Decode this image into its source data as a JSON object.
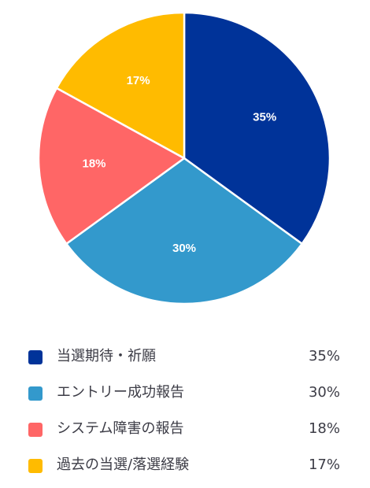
{
  "chart_data": {
    "type": "pie",
    "title": "",
    "legend_position": "bottom",
    "slices": [
      {
        "label": "当選期待・祈願",
        "value": 35,
        "display": "35%",
        "color": "#003399"
      },
      {
        "label": "エントリー成功報告",
        "value": 30,
        "display": "30%",
        "color": "#3399cc"
      },
      {
        "label": "システム障害の報告",
        "value": 18,
        "display": "18%",
        "color": "#ff6666"
      },
      {
        "label": "過去の当選/落選経験",
        "value": 17,
        "display": "17%",
        "color": "#ffbb00"
      }
    ]
  }
}
